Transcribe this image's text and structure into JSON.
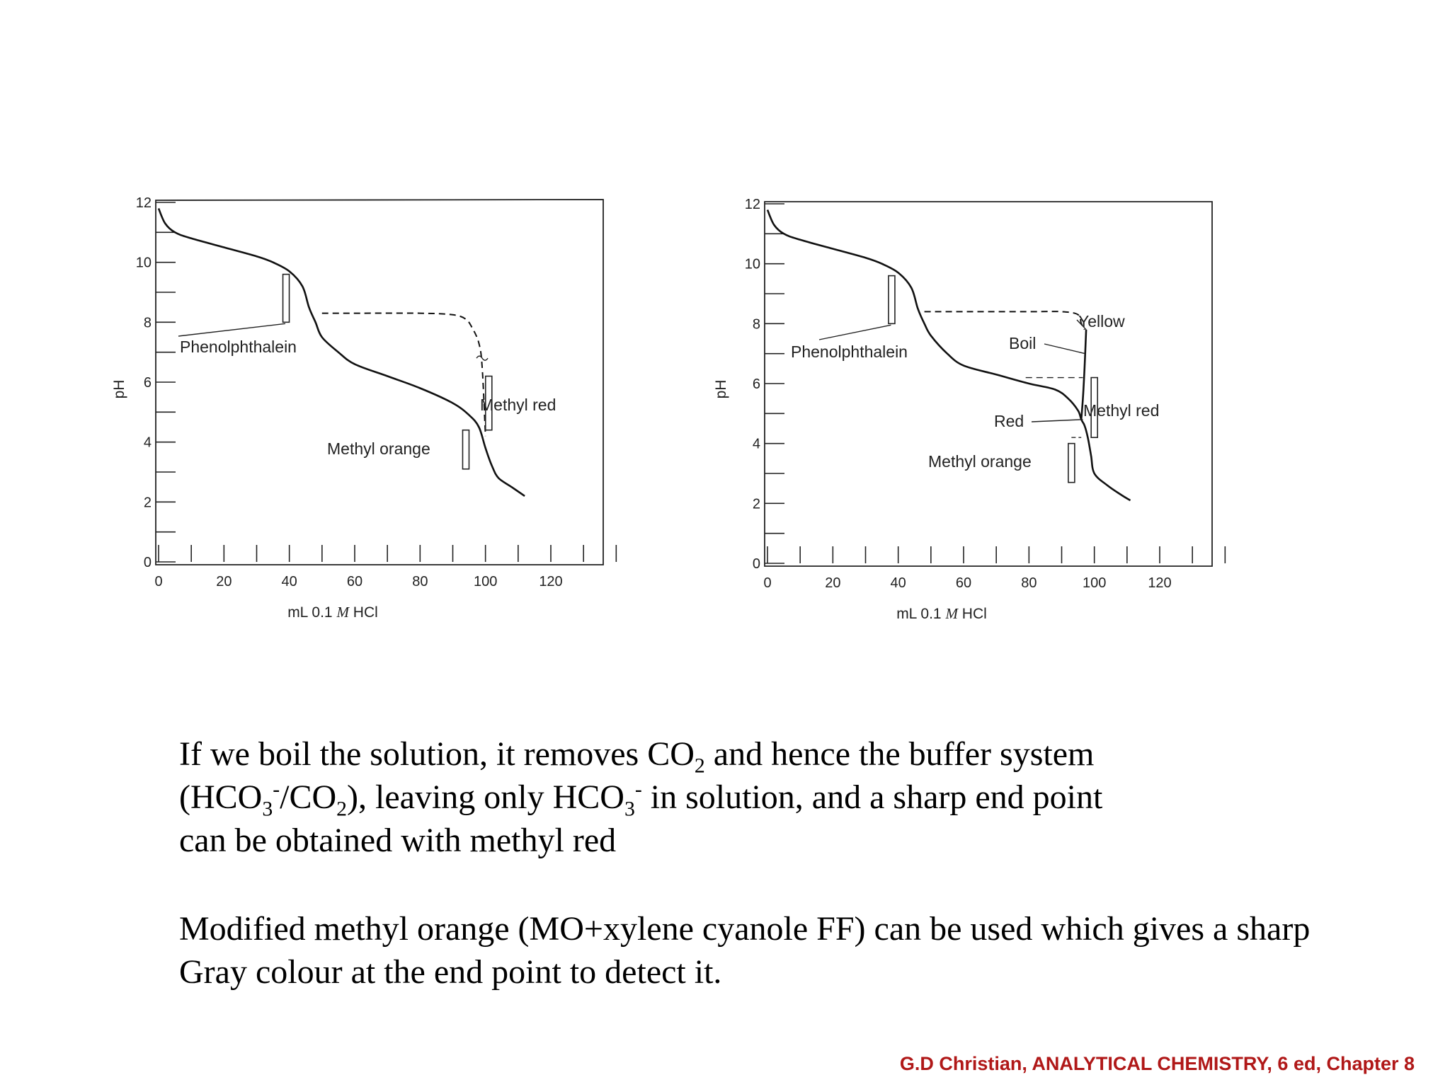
{
  "charts": [
    {
      "id": "left",
      "xlabel": "mL 0.1 M HCl",
      "ylabel": "pH",
      "x_ticks": [
        "0",
        "20",
        "40",
        "60",
        "80",
        "100",
        "120"
      ],
      "y_ticks": [
        "0",
        "2",
        "4",
        "6",
        "8",
        "10",
        "12"
      ],
      "labels": {
        "phenolphthalein": "Phenolphthalein",
        "methyl_red": "Methyl red",
        "methyl_orange": "Methyl orange"
      }
    },
    {
      "id": "right",
      "xlabel": "mL 0.1 M HCl",
      "ylabel": "pH",
      "x_ticks": [
        "0",
        "20",
        "40",
        "60",
        "80",
        "100",
        "120"
      ],
      "y_ticks": [
        "0",
        "2",
        "4",
        "6",
        "8",
        "10",
        "12"
      ],
      "labels": {
        "phenolphthalein": "Phenolphthalein",
        "methyl_red": "Methyl red",
        "methyl_orange": "Methyl orange",
        "yellow": "Yellow",
        "boil": "Boil",
        "red": "Red"
      }
    }
  ],
  "chart_data": [
    {
      "type": "line",
      "xlabel": "mL 0.1 M HCl",
      "ylabel": "pH",
      "xlim": [
        0,
        120
      ],
      "ylim": [
        0,
        12
      ],
      "series": [
        {
          "style": "solid",
          "x": [
            0,
            2,
            5,
            10,
            20,
            30,
            35,
            40,
            44,
            46,
            48,
            50,
            55,
            60,
            70,
            80,
            90,
            95,
            98,
            100,
            102,
            104,
            108,
            112
          ],
          "y": [
            11.8,
            11.3,
            11.0,
            10.8,
            10.5,
            10.2,
            10.0,
            9.7,
            9.2,
            8.5,
            8.0,
            7.5,
            7.0,
            6.6,
            6.2,
            5.8,
            5.3,
            4.9,
            4.5,
            3.8,
            3.2,
            2.8,
            2.5,
            2.2
          ]
        },
        {
          "style": "dashed",
          "x": [
            50,
            60,
            80,
            90,
            94,
            96,
            98,
            99,
            100
          ],
          "y": [
            8.3,
            8.3,
            8.3,
            8.25,
            8.1,
            7.8,
            7.3,
            6.5,
            4.2
          ]
        }
      ],
      "indicator_ranges": [
        {
          "name": "Phenolphthalein",
          "x": 39,
          "ymin": 8.0,
          "ymax": 9.6
        },
        {
          "name": "Methyl red",
          "x": 101,
          "ymin": 4.4,
          "ymax": 6.2
        },
        {
          "name": "Methyl orange",
          "x": 94,
          "ymin": 3.1,
          "ymax": 4.4
        }
      ]
    },
    {
      "type": "line",
      "xlabel": "mL 0.1 M HCl",
      "ylabel": "pH",
      "xlim": [
        0,
        120
      ],
      "ylim": [
        0,
        12
      ],
      "series": [
        {
          "style": "solid",
          "x": [
            0,
            2,
            5,
            10,
            20,
            30,
            35,
            40,
            44,
            46,
            48,
            50,
            55,
            60,
            70,
            80,
            88,
            92,
            95,
            96,
            97,
            98,
            99,
            100,
            104,
            108,
            111
          ],
          "y": [
            11.8,
            11.3,
            11.0,
            10.8,
            10.5,
            10.2,
            10.0,
            9.7,
            9.2,
            8.5,
            8.0,
            7.6,
            7.0,
            6.6,
            6.3,
            6.0,
            5.8,
            5.5,
            5.1,
            4.8,
            4.6,
            4.2,
            3.6,
            3.0,
            2.6,
            2.3,
            2.1
          ]
        },
        {
          "style": "dashed",
          "x": [
            48,
            60,
            80,
            90,
            95,
            96,
            97
          ],
          "y": [
            8.4,
            8.4,
            8.4,
            8.4,
            8.3,
            8.0,
            7.8
          ]
        },
        {
          "style": "solid",
          "x": [
            96,
            96.5,
            97,
            97.5
          ],
          "y": [
            4.8,
            5.5,
            6.5,
            7.8
          ]
        }
      ],
      "indicator_ranges": [
        {
          "name": "Phenolphthalein",
          "x": 38,
          "ymin": 8.0,
          "ymax": 9.6
        },
        {
          "name": "Methyl red",
          "x": 100,
          "ymin": 4.2,
          "ymax": 6.2
        },
        {
          "name": "Methyl orange",
          "x": 93,
          "ymin": 2.7,
          "ymax": 4.0
        }
      ]
    }
  ],
  "text": {
    "p1_l1_a": "If we boil the solution, it removes CO",
    "p1_l1_sub": "2",
    "p1_l1_b": " and hence the buffer system",
    "p1_l2_a": "(HCO",
    "p1_l2_sub1": "3",
    "p1_l2_sup1": "-",
    "p1_l2_b": "/CO",
    "p1_l2_sub2": "2",
    "p1_l2_c": "), leaving only HCO",
    "p1_l2_sub3": "3",
    "p1_l2_sup2": "-",
    "p1_l2_d": " in solution, and a sharp end point",
    "p1_l3": "can be obtained with methyl red",
    "p2_l1": "Modified methyl orange (MO+xylene cyanole FF) can be used which gives a sharp",
    "p2_l2": "Gray colour at the end point to detect it."
  },
  "citation": "G.D Christian, ANALYTICAL CHEMISTRY, 6 ed, Chapter 8"
}
